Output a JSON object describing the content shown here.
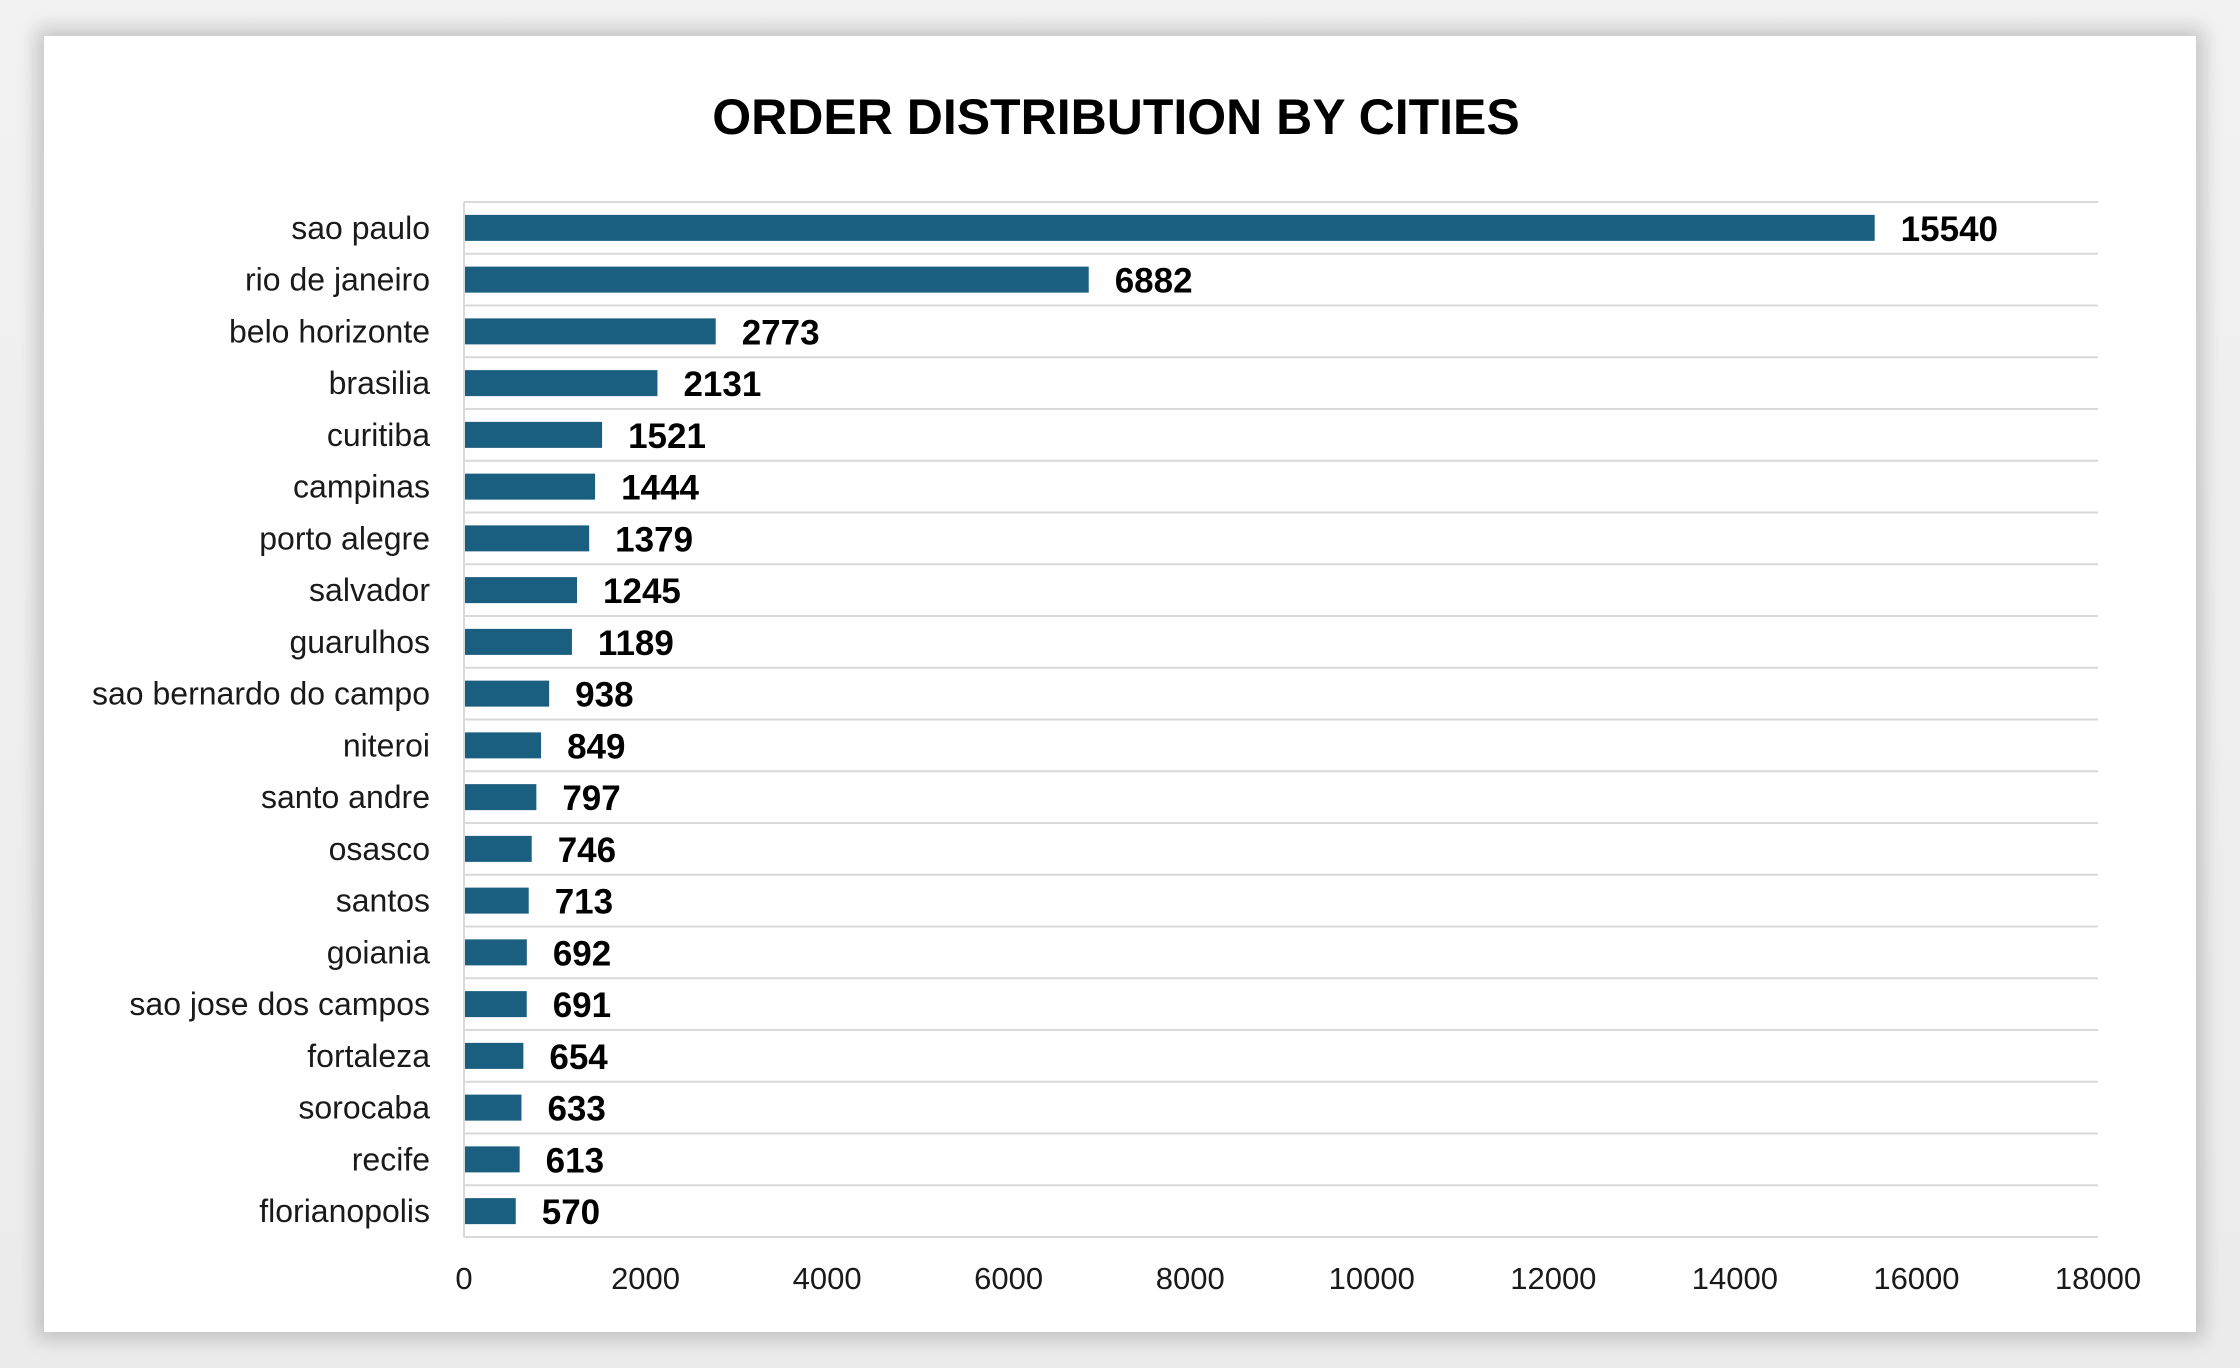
{
  "chart_data": {
    "type": "bar",
    "orientation": "horizontal",
    "title": "ORDER DISTRIBUTION BY CITIES",
    "xlabel": "",
    "ylabel": "",
    "categories": [
      "sao paulo",
      "rio de janeiro",
      "belo horizonte",
      "brasilia",
      "curitiba",
      "campinas",
      "porto alegre",
      "salvador",
      "guarulhos",
      "sao bernardo do campo",
      "niteroi",
      "santo andre",
      "osasco",
      "santos",
      "goiania",
      "sao jose dos campos",
      "fortaleza",
      "sorocaba",
      "recife",
      "florianopolis"
    ],
    "values": [
      15540,
      6882,
      2773,
      2131,
      1521,
      1444,
      1379,
      1245,
      1189,
      938,
      849,
      797,
      746,
      713,
      692,
      691,
      654,
      633,
      613,
      570
    ],
    "value_labels": [
      "15540",
      "6882",
      "2773",
      "2131",
      "1521",
      "1444",
      "1379",
      "1245",
      "1189",
      "938",
      "849",
      "797",
      "746",
      "713",
      "692",
      "691",
      "654",
      "633",
      "613",
      "570"
    ],
    "xlim": [
      0,
      18000
    ],
    "xticks": [
      0,
      2000,
      4000,
      6000,
      8000,
      10000,
      12000,
      14000,
      16000,
      18000
    ],
    "xtick_labels": [
      "0",
      "2000",
      "4000",
      "6000",
      "8000",
      "10000",
      "12000",
      "14000",
      "16000",
      "18000"
    ],
    "grid": "horizontal",
    "legend": "none",
    "colors": {
      "bar": "#1a5e80",
      "grid": "#d9d9d9",
      "text": "#1a1a1a"
    }
  }
}
